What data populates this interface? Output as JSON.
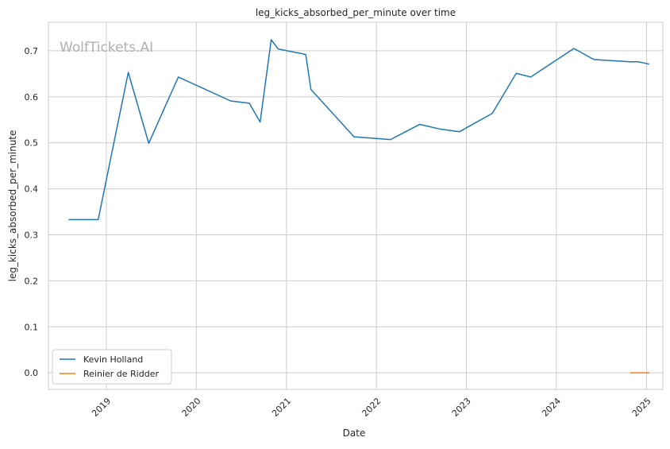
{
  "watermark": "WolfTickets.AI",
  "colors": {
    "background": "#ffffff",
    "grid": "#cccccc",
    "axis_frame": "#cccccc",
    "text": "#262626",
    "watermark": "#b0b0b0"
  },
  "chart_data": {
    "type": "line",
    "title": "leg_kicks_absorbed_per_minute over time",
    "xlabel": "Date",
    "ylabel": "leg_kicks_absorbed_per_minute",
    "xlim": [
      "2018-05-11",
      "2025-03-08"
    ],
    "ylim": [
      -0.036,
      0.762
    ],
    "x_ticks": [
      "2019",
      "2020",
      "2021",
      "2022",
      "2023",
      "2024",
      "2025"
    ],
    "y_ticks": [
      "0.0",
      "0.1",
      "0.2",
      "0.3",
      "0.4",
      "0.5",
      "0.6",
      "0.7"
    ],
    "grid": true,
    "legend_position": "lower-left",
    "series": [
      {
        "name": "Kevin Holland",
        "color": "#1f77b4",
        "x": [
          "2018-08-01",
          "2018-11-29",
          "2019-03-31",
          "2019-06-22",
          "2019-10-20",
          "2020-05-19",
          "2020-08-03",
          "2020-09-16",
          "2020-10-31",
          "2020-11-28",
          "2021-03-20",
          "2021-04-10",
          "2021-10-02",
          "2022-02-27",
          "2022-06-25",
          "2022-09-15",
          "2022-12-03",
          "2023-04-16",
          "2023-07-22",
          "2023-09-19",
          "2024-03-12",
          "2024-06-01",
          "2024-10-26",
          "2024-11-28",
          "2025-01-12"
        ],
        "y": [
          0.333,
          0.333,
          0.653,
          0.499,
          0.643,
          0.591,
          0.586,
          0.545,
          0.724,
          0.704,
          0.692,
          0.616,
          0.513,
          0.507,
          0.54,
          0.53,
          0.524,
          0.564,
          0.651,
          0.643,
          0.705,
          0.681,
          0.676,
          0.676,
          0.671
        ]
      },
      {
        "name": "Reinier de Ridder",
        "color": "#ff7f0e",
        "x": [
          "2024-10-26",
          "2025-01-12"
        ],
        "y": [
          0.0,
          0.0
        ]
      }
    ]
  }
}
